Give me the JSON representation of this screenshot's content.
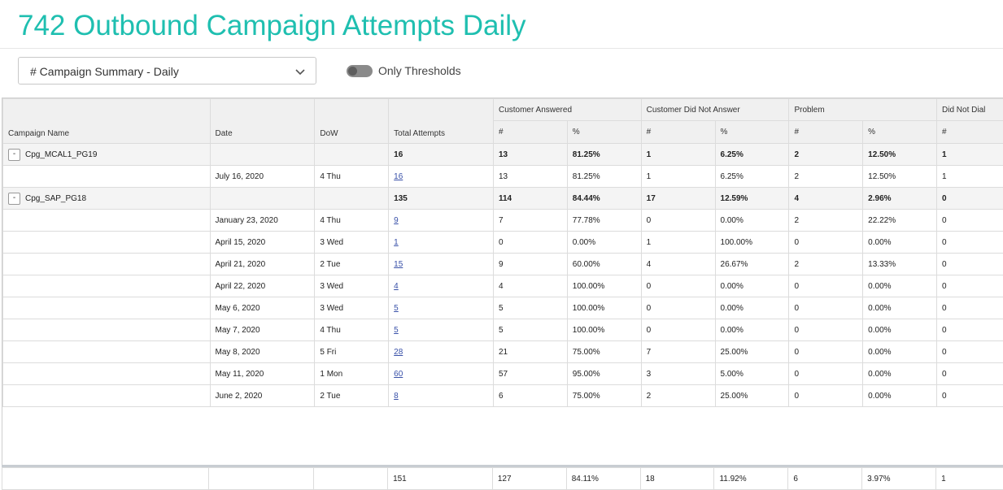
{
  "page": {
    "title": "742 Outbound Campaign Attempts Daily"
  },
  "filters": {
    "report_select": "# Campaign Summary - Daily",
    "toggle_label": "Only Thresholds"
  },
  "table": {
    "group_headers": [
      "Customer Answered",
      "Customer Did Not Answer",
      "Problem",
      "Did Not Dial"
    ],
    "columns": [
      "Campaign Name",
      "Date",
      "DoW",
      "Total Attempts"
    ],
    "sub_headers": [
      "#",
      "%",
      "#",
      "%",
      "#",
      "%",
      "#"
    ],
    "rows": [
      {
        "type": "group",
        "campaign": "Cpg_MCAL1_PG19",
        "date": "",
        "dow": "",
        "total": "16",
        "ca_n": "13",
        "ca_p": "81.25%",
        "cdna_n": "1",
        "cdna_p": "6.25%",
        "pr_n": "2",
        "pr_p": "12.50%",
        "dnd_n": "1"
      },
      {
        "type": "row",
        "campaign": "",
        "date": "July 16, 2020",
        "dow": "4 Thu",
        "total": "16",
        "ca_n": "13",
        "ca_p": "81.25%",
        "cdna_n": "1",
        "cdna_p": "6.25%",
        "pr_n": "2",
        "pr_p": "12.50%",
        "dnd_n": "1"
      },
      {
        "type": "group",
        "campaign": "Cpg_SAP_PG18",
        "date": "",
        "dow": "",
        "total": "135",
        "ca_n": "114",
        "ca_p": "84.44%",
        "cdna_n": "17",
        "cdna_p": "12.59%",
        "pr_n": "4",
        "pr_p": "2.96%",
        "dnd_n": "0"
      },
      {
        "type": "row",
        "campaign": "",
        "date": "January 23, 2020",
        "dow": "4 Thu",
        "total": "9",
        "ca_n": "7",
        "ca_p": "77.78%",
        "cdna_n": "0",
        "cdna_p": "0.00%",
        "pr_n": "2",
        "pr_p": "22.22%",
        "dnd_n": "0"
      },
      {
        "type": "row",
        "campaign": "",
        "date": "April 15, 2020",
        "dow": "3 Wed",
        "total": "1",
        "ca_n": "0",
        "ca_p": "0.00%",
        "cdna_n": "1",
        "cdna_p": "100.00%",
        "pr_n": "0",
        "pr_p": "0.00%",
        "dnd_n": "0"
      },
      {
        "type": "row",
        "campaign": "",
        "date": "April 21, 2020",
        "dow": "2 Tue",
        "total": "15",
        "ca_n": "9",
        "ca_p": "60.00%",
        "cdna_n": "4",
        "cdna_p": "26.67%",
        "pr_n": "2",
        "pr_p": "13.33%",
        "dnd_n": "0"
      },
      {
        "type": "row",
        "campaign": "",
        "date": "April 22, 2020",
        "dow": "3 Wed",
        "total": "4",
        "ca_n": "4",
        "ca_p": "100.00%",
        "cdna_n": "0",
        "cdna_p": "0.00%",
        "pr_n": "0",
        "pr_p": "0.00%",
        "dnd_n": "0"
      },
      {
        "type": "row",
        "campaign": "",
        "date": "May 6, 2020",
        "dow": "3 Wed",
        "total": "5",
        "ca_n": "5",
        "ca_p": "100.00%",
        "cdna_n": "0",
        "cdna_p": "0.00%",
        "pr_n": "0",
        "pr_p": "0.00%",
        "dnd_n": "0"
      },
      {
        "type": "row",
        "campaign": "",
        "date": "May 7, 2020",
        "dow": "4 Thu",
        "total": "5",
        "ca_n": "5",
        "ca_p": "100.00%",
        "cdna_n": "0",
        "cdna_p": "0.00%",
        "pr_n": "0",
        "pr_p": "0.00%",
        "dnd_n": "0"
      },
      {
        "type": "row",
        "campaign": "",
        "date": "May 8, 2020",
        "dow": "5 Fri",
        "total": "28",
        "ca_n": "21",
        "ca_p": "75.00%",
        "cdna_n": "7",
        "cdna_p": "25.00%",
        "pr_n": "0",
        "pr_p": "0.00%",
        "dnd_n": "0"
      },
      {
        "type": "row",
        "campaign": "",
        "date": "May 11, 2020",
        "dow": "1 Mon",
        "total": "60",
        "ca_n": "57",
        "ca_p": "95.00%",
        "cdna_n": "3",
        "cdna_p": "5.00%",
        "pr_n": "0",
        "pr_p": "0.00%",
        "dnd_n": "0"
      },
      {
        "type": "row",
        "campaign": "",
        "date": "June 2, 2020",
        "dow": "2 Tue",
        "total": "8",
        "ca_n": "6",
        "ca_p": "75.00%",
        "cdna_n": "2",
        "cdna_p": "25.00%",
        "pr_n": "0",
        "pr_p": "0.00%",
        "dnd_n": "0"
      }
    ],
    "totals": {
      "total": "151",
      "ca_n": "127",
      "ca_p": "84.11%",
      "cdna_n": "18",
      "cdna_p": "11.92%",
      "pr_n": "6",
      "pr_p": "3.97%",
      "dnd_n": "1"
    }
  }
}
